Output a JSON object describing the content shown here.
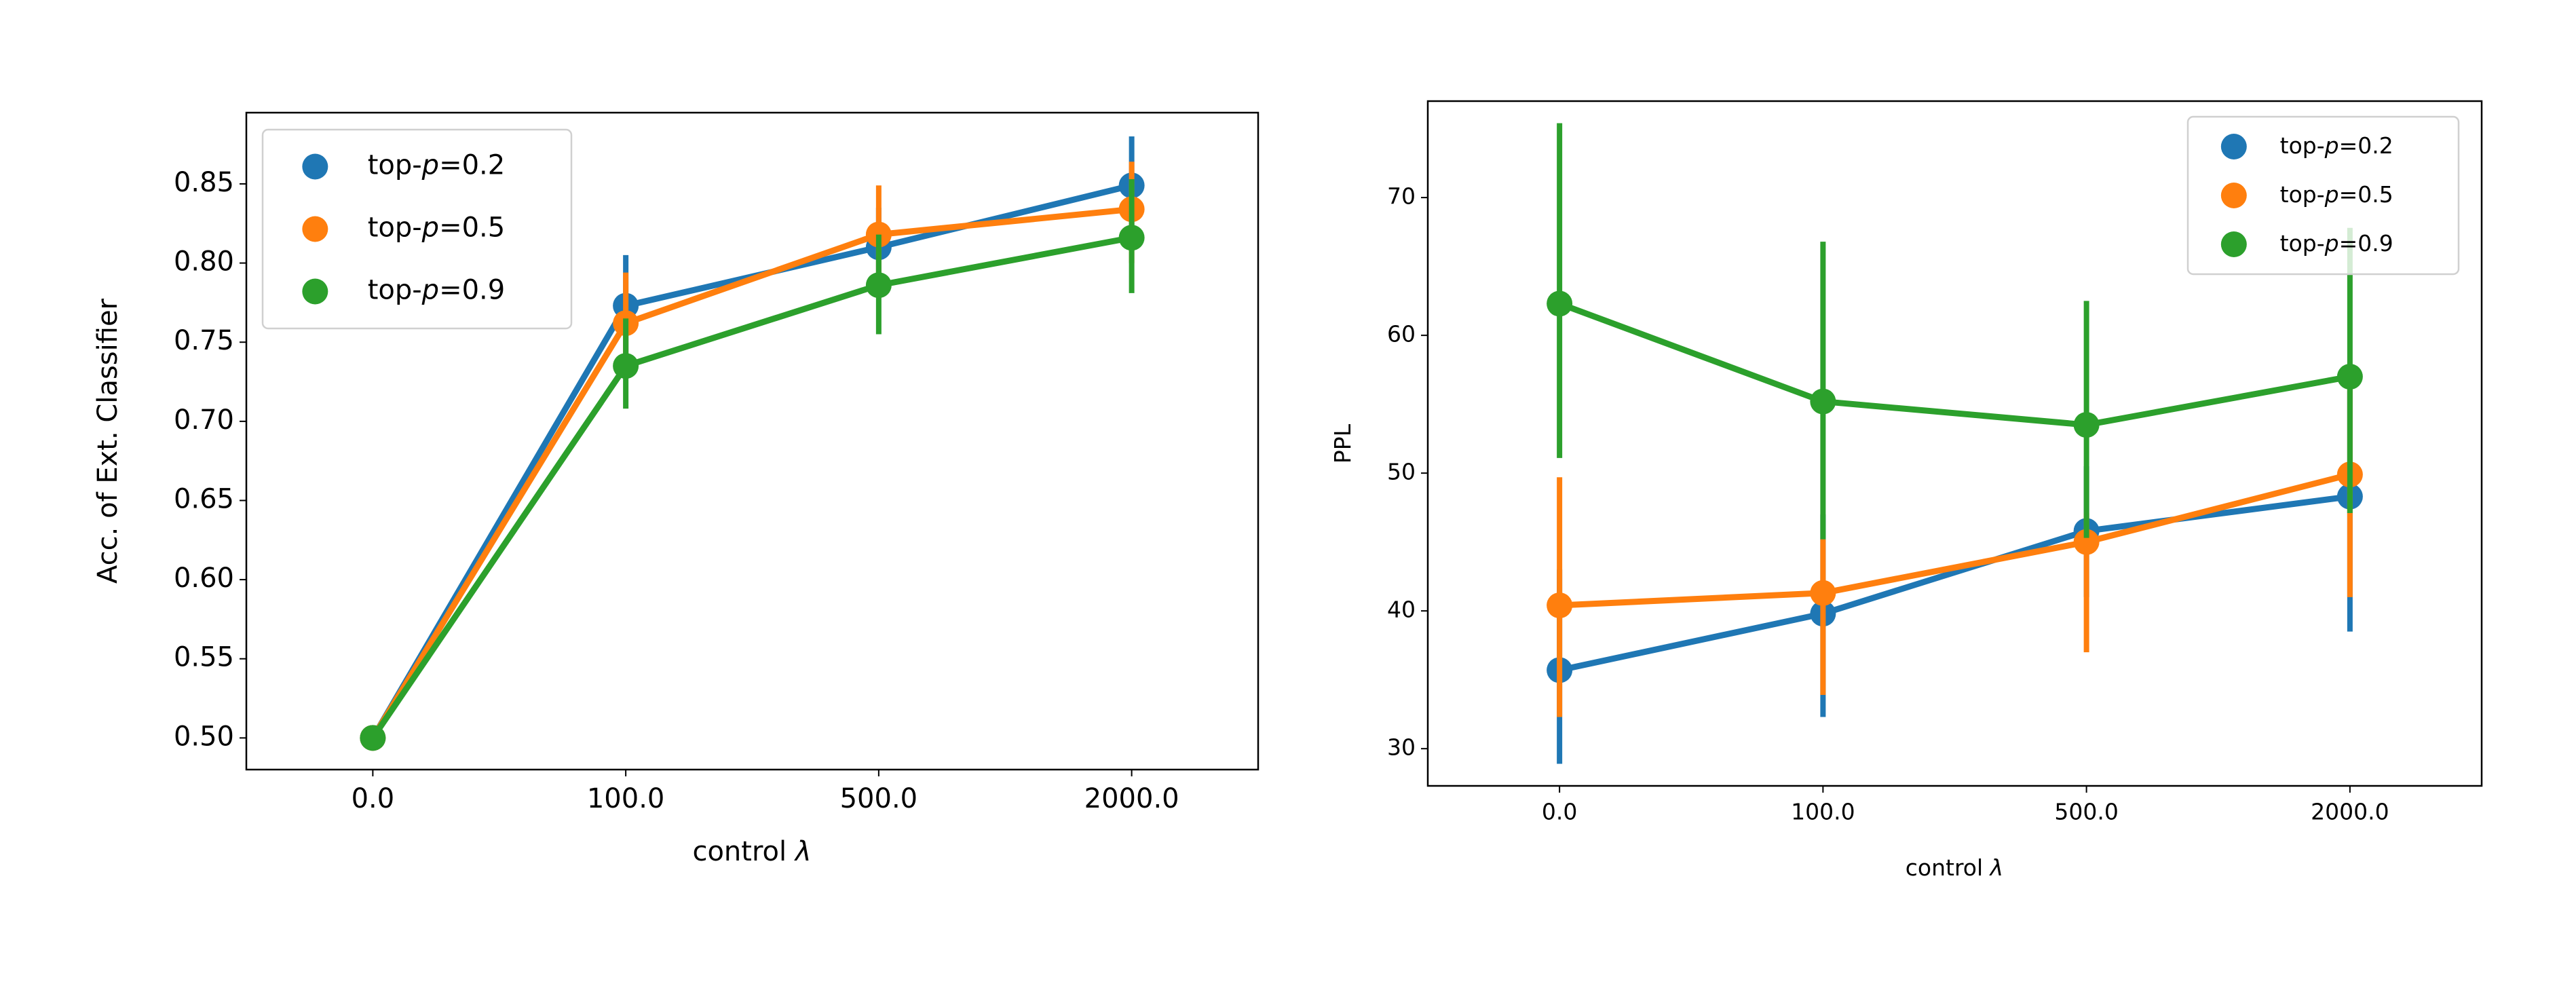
{
  "chart_data": [
    {
      "type": "line",
      "categories": [
        "0.0",
        "100.0",
        "500.0",
        "2000.0"
      ],
      "xlabel": "control λ",
      "ylabel": "Acc. of Ext. Classifier",
      "ylim": [
        0.48,
        0.895
      ],
      "yticks": [
        0.5,
        0.55,
        0.6,
        0.65,
        0.7,
        0.75,
        0.8,
        0.85
      ],
      "ytick_labels": [
        "0.50",
        "0.55",
        "0.60",
        "0.65",
        "0.70",
        "0.75",
        "0.80",
        "0.85"
      ],
      "legend": "top-left",
      "grid": false,
      "error_bars": true,
      "series": [
        {
          "name": "top-p=0.2",
          "color": "#1f77b4",
          "values": [
            0.5,
            0.773,
            0.81,
            0.849
          ],
          "ci_low": [
            0.5,
            0.74,
            0.785,
            0.82
          ],
          "ci_high": [
            0.5,
            0.805,
            0.835,
            0.88
          ]
        },
        {
          "name": "top-p=0.5",
          "color": "#ff7f0e",
          "values": [
            0.5,
            0.762,
            0.818,
            0.834
          ],
          "ci_low": [
            0.5,
            0.73,
            0.785,
            0.8
          ],
          "ci_high": [
            0.5,
            0.794,
            0.849,
            0.864
          ]
        },
        {
          "name": "top-p=0.9",
          "color": "#2ca02c",
          "values": [
            0.5,
            0.735,
            0.786,
            0.816
          ],
          "ci_low": [
            0.5,
            0.708,
            0.755,
            0.781
          ],
          "ci_high": [
            0.5,
            0.765,
            0.818,
            0.853
          ]
        }
      ]
    },
    {
      "type": "line",
      "categories": [
        "0.0",
        "100.0",
        "500.0",
        "2000.0"
      ],
      "xlabel": "control λ",
      "ylabel": "PPL",
      "ylim": [
        27.3,
        77.0
      ],
      "yticks": [
        30,
        40,
        50,
        60,
        70
      ],
      "ytick_labels": [
        "30",
        "40",
        "50",
        "60",
        "70"
      ],
      "legend": "top-right",
      "grid": false,
      "error_bars": true,
      "series": [
        {
          "name": "top-p=0.2",
          "color": "#1f77b4",
          "values": [
            35.7,
            39.8,
            45.8,
            48.3
          ],
          "ci_low": [
            28.9,
            32.3,
            41.0,
            38.5
          ],
          "ci_high": [
            43.0,
            47.0,
            50.5,
            56.0
          ]
        },
        {
          "name": "top-p=0.5",
          "color": "#ff7f0e",
          "values": [
            40.4,
            41.3,
            45.0,
            49.9
          ],
          "ci_low": [
            32.3,
            33.9,
            37.0,
            41.0
          ],
          "ci_high": [
            49.7,
            45.2,
            47.1,
            57.0
          ]
        },
        {
          "name": "top-p=0.9",
          "color": "#2ca02c",
          "values": [
            62.3,
            55.2,
            53.5,
            57.0
          ],
          "ci_low": [
            51.1,
            45.2,
            45.3,
            47.1
          ],
          "ci_high": [
            75.4,
            66.8,
            62.5,
            67.8
          ]
        }
      ]
    }
  ]
}
